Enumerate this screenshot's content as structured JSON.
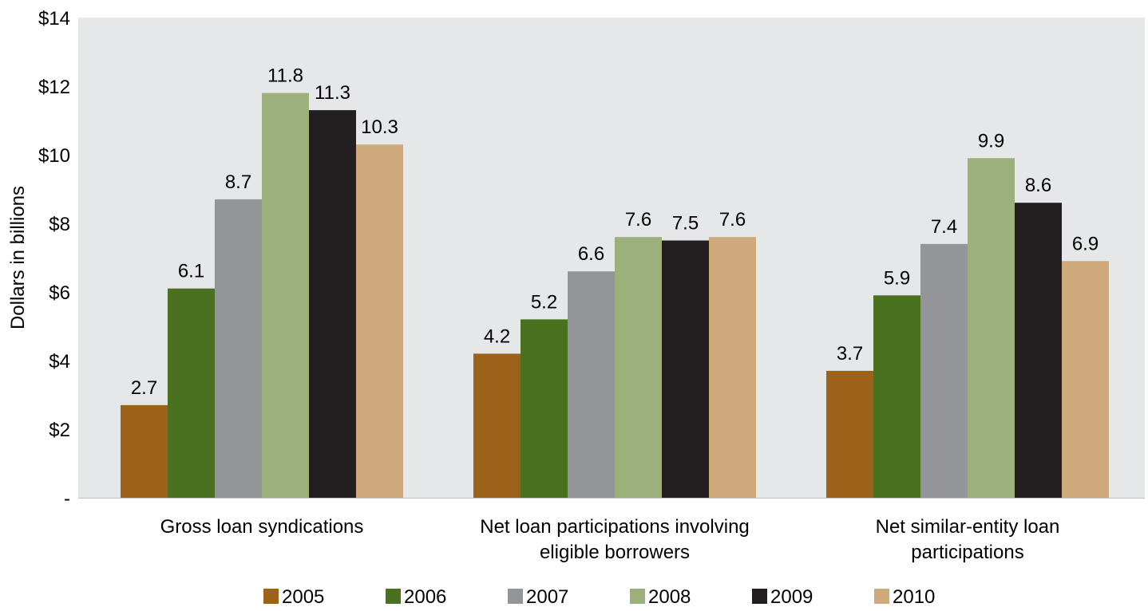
{
  "chart_data": {
    "type": "bar",
    "title": "",
    "xlabel": "",
    "ylabel": "Dollars in billions",
    "ylim": [
      0,
      14
    ],
    "yticks": [
      {
        "value": 0,
        "label": "-"
      },
      {
        "value": 2,
        "label": "$2"
      },
      {
        "value": 4,
        "label": "$4"
      },
      {
        "value": 6,
        "label": "$6"
      },
      {
        "value": 8,
        "label": "$8"
      },
      {
        "value": 10,
        "label": "$10"
      },
      {
        "value": 12,
        "label": "$12"
      },
      {
        "value": 14,
        "label": "$14"
      }
    ],
    "categories": [
      [
        "Gross loan syndications"
      ],
      [
        "Net loan participations involving",
        "eligible borrowers"
      ],
      [
        "Net similar-entity loan",
        "participations"
      ]
    ],
    "series": [
      {
        "name": "2005",
        "color": "#9C6219",
        "values": [
          2.7,
          4.2,
          3.7
        ]
      },
      {
        "name": "2006",
        "color": "#4A711F",
        "values": [
          6.1,
          5.2,
          5.9
        ]
      },
      {
        "name": "2007",
        "color": "#939598",
        "values": [
          8.7,
          6.6,
          7.4
        ]
      },
      {
        "name": "2008",
        "color": "#9BB07B",
        "values": [
          11.8,
          7.6,
          9.9
        ]
      },
      {
        "name": "2009",
        "color": "#231F20",
        "values": [
          11.3,
          7.5,
          8.6
        ]
      },
      {
        "name": "2010",
        "color": "#CEAA7D",
        "values": [
          10.3,
          7.6,
          6.9
        ]
      }
    ],
    "grid": false,
    "legend": "bottom",
    "plot_background": "#E6E7E8"
  }
}
